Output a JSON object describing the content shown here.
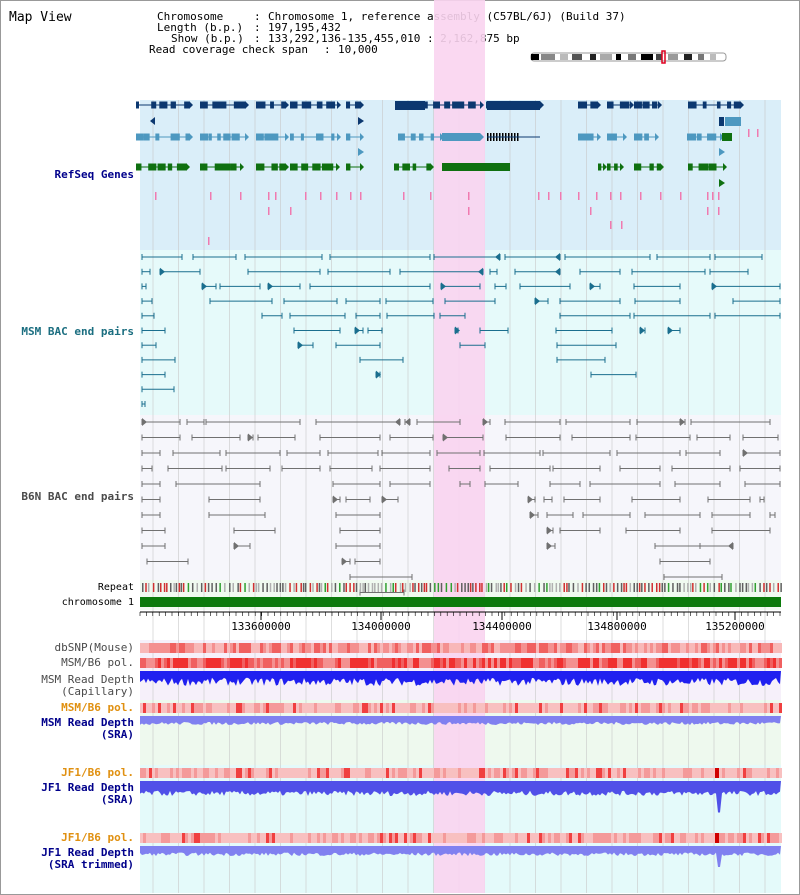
{
  "title": "Map View",
  "info": {
    "chromosome_key": "Chromosome",
    "chromosome_val": "Chromosome 1, reference assembly (C57BL/6J) (Build 37)",
    "length_key": "Length (b.p.)",
    "length_val": "197,195,432",
    "show_key": "Show (b.p.)",
    "show_val": "133,292,136-135,455,010 : 2,162,875 bp",
    "span_key": "Read coverage check span",
    "span_val": "10,000"
  },
  "tracks": {
    "refseq": "RefSeq Genes",
    "msm_bac": "MSM BAC end pairs",
    "b6n_bac": "B6N BAC end pairs",
    "repeat": "Repeat",
    "chromosome": "chromosome 1",
    "dbsnp": "dbSNP(Mouse)",
    "msm_pol": "MSM/B6 pol.",
    "msm_depth_cap_1": "MSM Read Depth",
    "msm_depth_cap_2": "(Capillary)",
    "msm_pol_2": "MSM/B6 pol.",
    "msm_depth_sra_1": "MSM Read Depth",
    "msm_depth_sra_2": "(SRA)",
    "jf1_pol": "JF1/B6 pol.",
    "jf1_depth_sra_1": "JF1 Read Depth",
    "jf1_depth_sra_2": "(SRA)",
    "jf1_pol_2": "JF1/B6 pol.",
    "jf1_depth_trim_1": "JF1 Read Depth",
    "jf1_depth_trim_2": "(SRA trimmed)"
  },
  "ruler": {
    "ticks": [
      "133600000",
      "134000000",
      "134400000",
      "134800000",
      "135200000"
    ]
  },
  "colors": {
    "refseq_bg": "#daeef9",
    "msm_bg": "#e6fafa",
    "b6n_bg": "#f6f6fb",
    "highlight": "#f9d4f0",
    "gene_dark": "#0c3870",
    "gene_mid": "#4d98c0",
    "gene_green": "#0f7010",
    "msm_line": "#1a6e8e",
    "b6n_line": "#707070",
    "chrom_green": "#0a7a0a",
    "depth_blue": "#2020f0",
    "depth_light": "#8080f0",
    "label_navy": "#00008b",
    "label_teal": "#1b6e80",
    "label_gray": "#4a4a4a",
    "label_orange": "#e09010"
  }
}
